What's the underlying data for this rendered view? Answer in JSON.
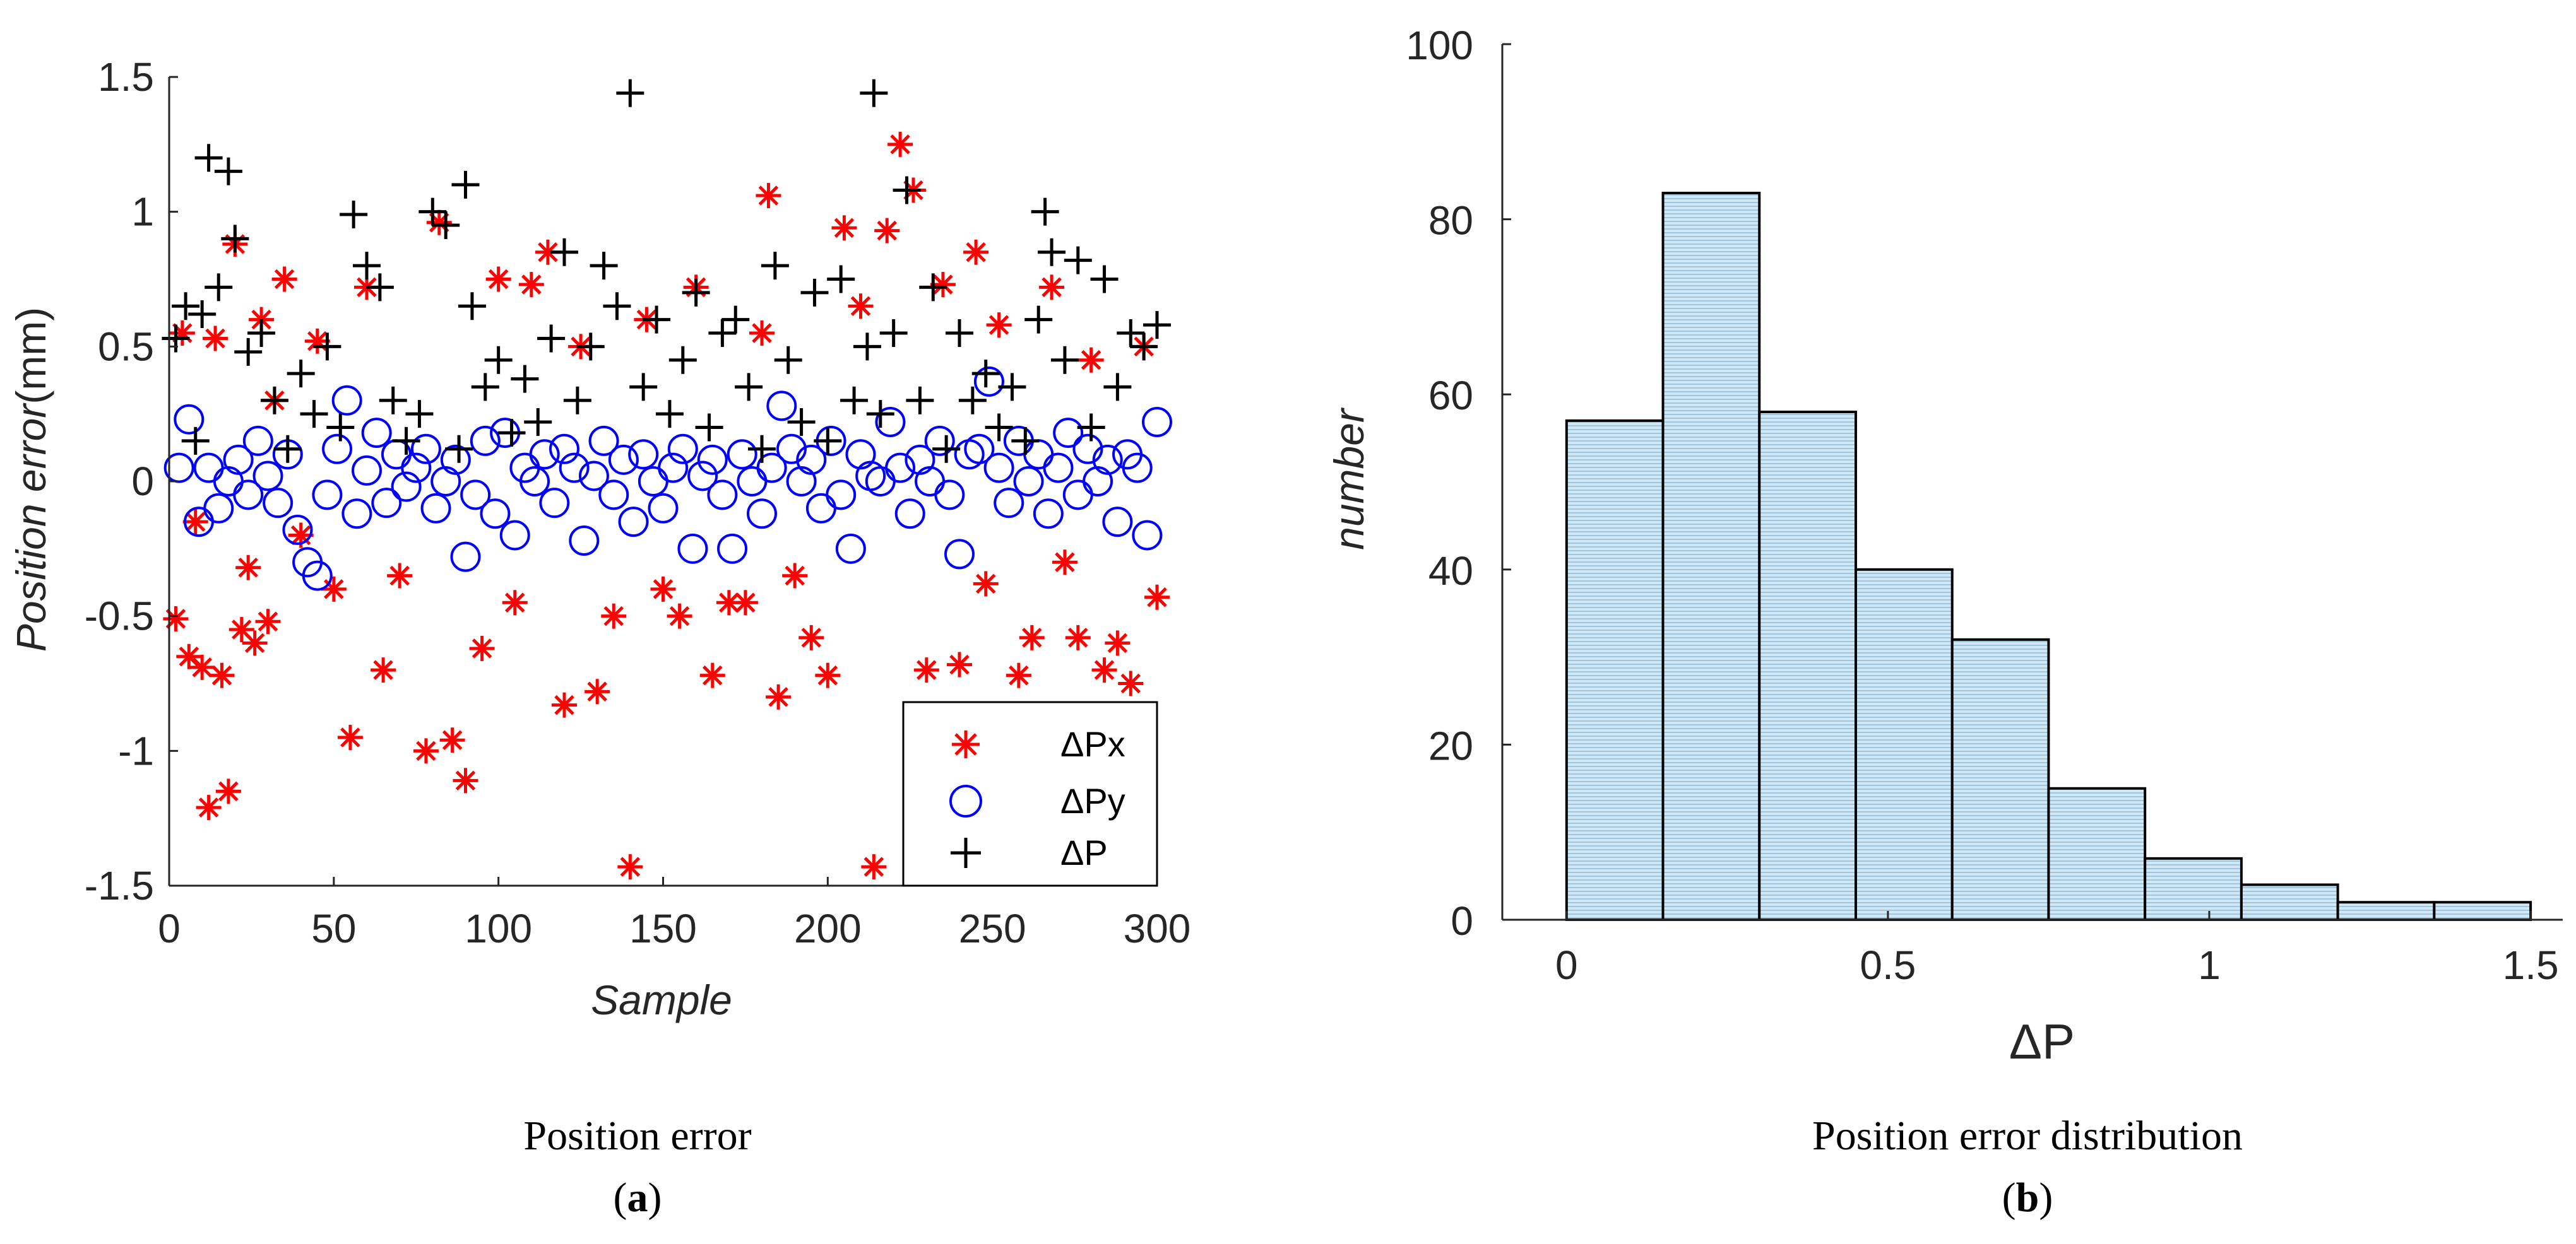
{
  "chart_data": [
    {
      "type": "scatter",
      "title": "",
      "caption": "Position error",
      "label_prefix": "(",
      "label": "a",
      "label_suffix": ")",
      "xlabel": "Sample",
      "ylabel_italic": "Position error",
      "ylabel_unit": "(mm)",
      "xlim": [
        0,
        300
      ],
      "ylim": [
        -1.5,
        1.5
      ],
      "xticks": [
        "0",
        "50",
        "100",
        "150",
        "200",
        "250",
        "300"
      ],
      "yticks": [
        "1.5",
        "1",
        "0.5",
        "0",
        "-0.5",
        "-1",
        "-1.5"
      ],
      "colors": {
        "px": "#ff0000",
        "py": "#0000ff",
        "p": "#000000"
      },
      "legend": [
        "ΔPx",
        "ΔPy",
        "ΔP"
      ],
      "legend_position": "bottom-right",
      "series": [
        {
          "name": "ΔPx",
          "marker": "asterisk",
          "x": [
            2,
            4,
            6,
            8,
            10,
            12,
            14,
            16,
            18,
            20,
            22,
            24,
            26,
            28,
            30,
            32,
            35,
            40,
            45,
            50,
            55,
            60,
            65,
            70,
            78,
            82,
            86,
            90,
            95,
            100,
            105,
            110,
            115,
            120,
            125,
            130,
            135,
            140,
            145,
            150,
            155,
            160,
            165,
            170,
            175,
            180,
            182,
            185,
            190,
            195,
            200,
            205,
            210,
            214,
            218,
            222,
            226,
            230,
            235,
            240,
            245,
            248,
            252,
            258,
            262,
            268,
            272,
            276,
            280,
            284,
            288,
            292,
            296,
            300
          ],
          "y": [
            -0.51,
            0.55,
            -0.65,
            -0.15,
            -0.69,
            -1.21,
            0.53,
            -0.72,
            -1.15,
            0.88,
            -0.55,
            -0.32,
            -0.6,
            0.6,
            -0.52,
            0.3,
            0.75,
            -0.2,
            0.52,
            -0.4,
            -0.95,
            0.72,
            -0.7,
            -0.35,
            -1.0,
            0.96,
            -0.96,
            -1.11,
            -0.62,
            0.75,
            -0.45,
            0.73,
            0.85,
            -0.83,
            0.5,
            -0.78,
            -0.5,
            -1.43,
            0.6,
            -0.4,
            -0.5,
            0.72,
            -0.72,
            -0.45,
            -0.45,
            0.55,
            1.06,
            -0.8,
            -0.35,
            -0.58,
            -0.72,
            0.94,
            0.65,
            -1.43,
            0.93,
            1.25,
            1.08,
            -0.7,
            0.73,
            -0.68,
            0.85,
            -0.38,
            0.58,
            -0.72,
            -0.58,
            0.72,
            -0.3,
            -0.58,
            0.45,
            -0.7,
            -0.6,
            -0.75,
            0.5,
            -0.43
          ]
        },
        {
          "name": "ΔPy",
          "marker": "circle",
          "x": [
            3,
            6,
            9,
            12,
            15,
            18,
            21,
            24,
            27,
            30,
            33,
            36,
            39,
            42,
            45,
            48,
            51,
            54,
            57,
            60,
            63,
            66,
            69,
            72,
            75,
            78,
            81,
            84,
            87,
            90,
            93,
            96,
            99,
            102,
            105,
            108,
            111,
            114,
            117,
            120,
            123,
            126,
            129,
            132,
            135,
            138,
            141,
            144,
            147,
            150,
            153,
            156,
            159,
            162,
            165,
            168,
            171,
            174,
            177,
            180,
            183,
            186,
            189,
            192,
            195,
            198,
            201,
            204,
            207,
            210,
            213,
            216,
            219,
            222,
            225,
            228,
            231,
            234,
            237,
            240,
            243,
            246,
            249,
            252,
            255,
            258,
            261,
            264,
            267,
            270,
            273,
            276,
            279,
            282,
            285,
            288,
            291,
            294,
            297,
            300
          ],
          "y": [
            0.05,
            0.23,
            -0.15,
            0.05,
            -0.1,
            0.0,
            0.08,
            -0.05,
            0.15,
            0.02,
            -0.08,
            0.1,
            -0.18,
            -0.3,
            -0.35,
            -0.05,
            0.12,
            0.3,
            -0.12,
            0.04,
            0.18,
            -0.08,
            0.1,
            -0.02,
            0.05,
            0.12,
            -0.1,
            0.0,
            0.08,
            -0.28,
            -0.05,
            0.15,
            -0.12,
            0.18,
            -0.2,
            0.05,
            0.0,
            0.1,
            -0.08,
            0.12,
            0.05,
            -0.22,
            0.02,
            0.15,
            -0.05,
            0.08,
            -0.15,
            0.1,
            0.0,
            -0.1,
            0.05,
            0.12,
            -0.25,
            0.02,
            0.08,
            -0.05,
            -0.25,
            0.1,
            0.0,
            -0.12,
            0.05,
            0.28,
            0.12,
            0.0,
            0.08,
            -0.1,
            0.15,
            -0.05,
            -0.25,
            0.1,
            0.02,
            0.0,
            0.22,
            0.05,
            -0.12,
            0.08,
            0.0,
            0.15,
            -0.05,
            -0.27,
            0.1,
            0.12,
            0.37,
            0.05,
            -0.08,
            0.15,
            0.0,
            0.1,
            -0.12,
            0.05,
            0.18,
            -0.05,
            0.12,
            0.0,
            0.08,
            -0.15,
            0.1,
            0.05,
            -0.2,
            0.22
          ]
        },
        {
          "name": "ΔP",
          "marker": "plus",
          "x": [
            2,
            5,
            8,
            10,
            12,
            15,
            18,
            20,
            24,
            28,
            32,
            36,
            40,
            44,
            48,
            52,
            56,
            60,
            64,
            68,
            72,
            76,
            80,
            84,
            88,
            90,
            92,
            96,
            100,
            104,
            108,
            112,
            116,
            120,
            124,
            128,
            132,
            136,
            140,
            144,
            148,
            152,
            156,
            160,
            164,
            168,
            172,
            176,
            180,
            184,
            188,
            192,
            196,
            200,
            204,
            208,
            212,
            214,
            216,
            220,
            224,
            228,
            232,
            236,
            240,
            244,
            248,
            252,
            256,
            260,
            264,
            266,
            268,
            272,
            276,
            280,
            284,
            288,
            292,
            296,
            300
          ],
          "y": [
            0.53,
            0.65,
            0.15,
            0.62,
            1.2,
            0.72,
            1.15,
            0.9,
            0.48,
            0.55,
            0.3,
            0.12,
            0.4,
            0.25,
            0.5,
            0.2,
            0.99,
            0.8,
            0.72,
            0.3,
            0.15,
            0.25,
            1.0,
            0.95,
            0.12,
            1.1,
            0.65,
            0.35,
            0.45,
            0.18,
            0.38,
            0.22,
            0.53,
            0.85,
            0.3,
            0.5,
            0.8,
            0.65,
            1.44,
            0.35,
            0.6,
            0.25,
            0.45,
            0.7,
            0.2,
            0.55,
            0.6,
            0.35,
            0.12,
            0.8,
            0.45,
            0.22,
            0.7,
            0.15,
            0.75,
            0.3,
            0.5,
            1.44,
            0.25,
            0.55,
            1.08,
            0.3,
            0.72,
            0.12,
            0.55,
            0.3,
            0.4,
            0.2,
            0.35,
            0.15,
            0.6,
            1.0,
            0.85,
            0.45,
            0.82,
            0.2,
            0.75,
            0.35,
            0.55,
            0.5,
            0.58
          ]
        }
      ]
    },
    {
      "type": "bar",
      "title": "",
      "caption": "Position error distribution",
      "label_prefix": "(",
      "label": "b",
      "label_suffix": ")",
      "xlabel": "ΔP",
      "ylabel": "number",
      "xlim": [
        -0.1,
        1.55
      ],
      "ylim": [
        0,
        100
      ],
      "xticks": [
        "0",
        "0.5",
        "1",
        "1.5"
      ],
      "yticks": [
        "100",
        "80",
        "60",
        "40",
        "20",
        "0"
      ],
      "bin_edges": [
        0,
        0.15,
        0.3,
        0.45,
        0.6,
        0.75,
        0.9,
        1.05,
        1.2,
        1.35,
        1.5
      ],
      "values": [
        57,
        83,
        58,
        40,
        32,
        15,
        7,
        4,
        2,
        2
      ],
      "colors": {
        "bar_fill": "#d4e8f4",
        "bar_hatch": "#9cc7e3",
        "bar_edge": "#000000"
      }
    }
  ]
}
